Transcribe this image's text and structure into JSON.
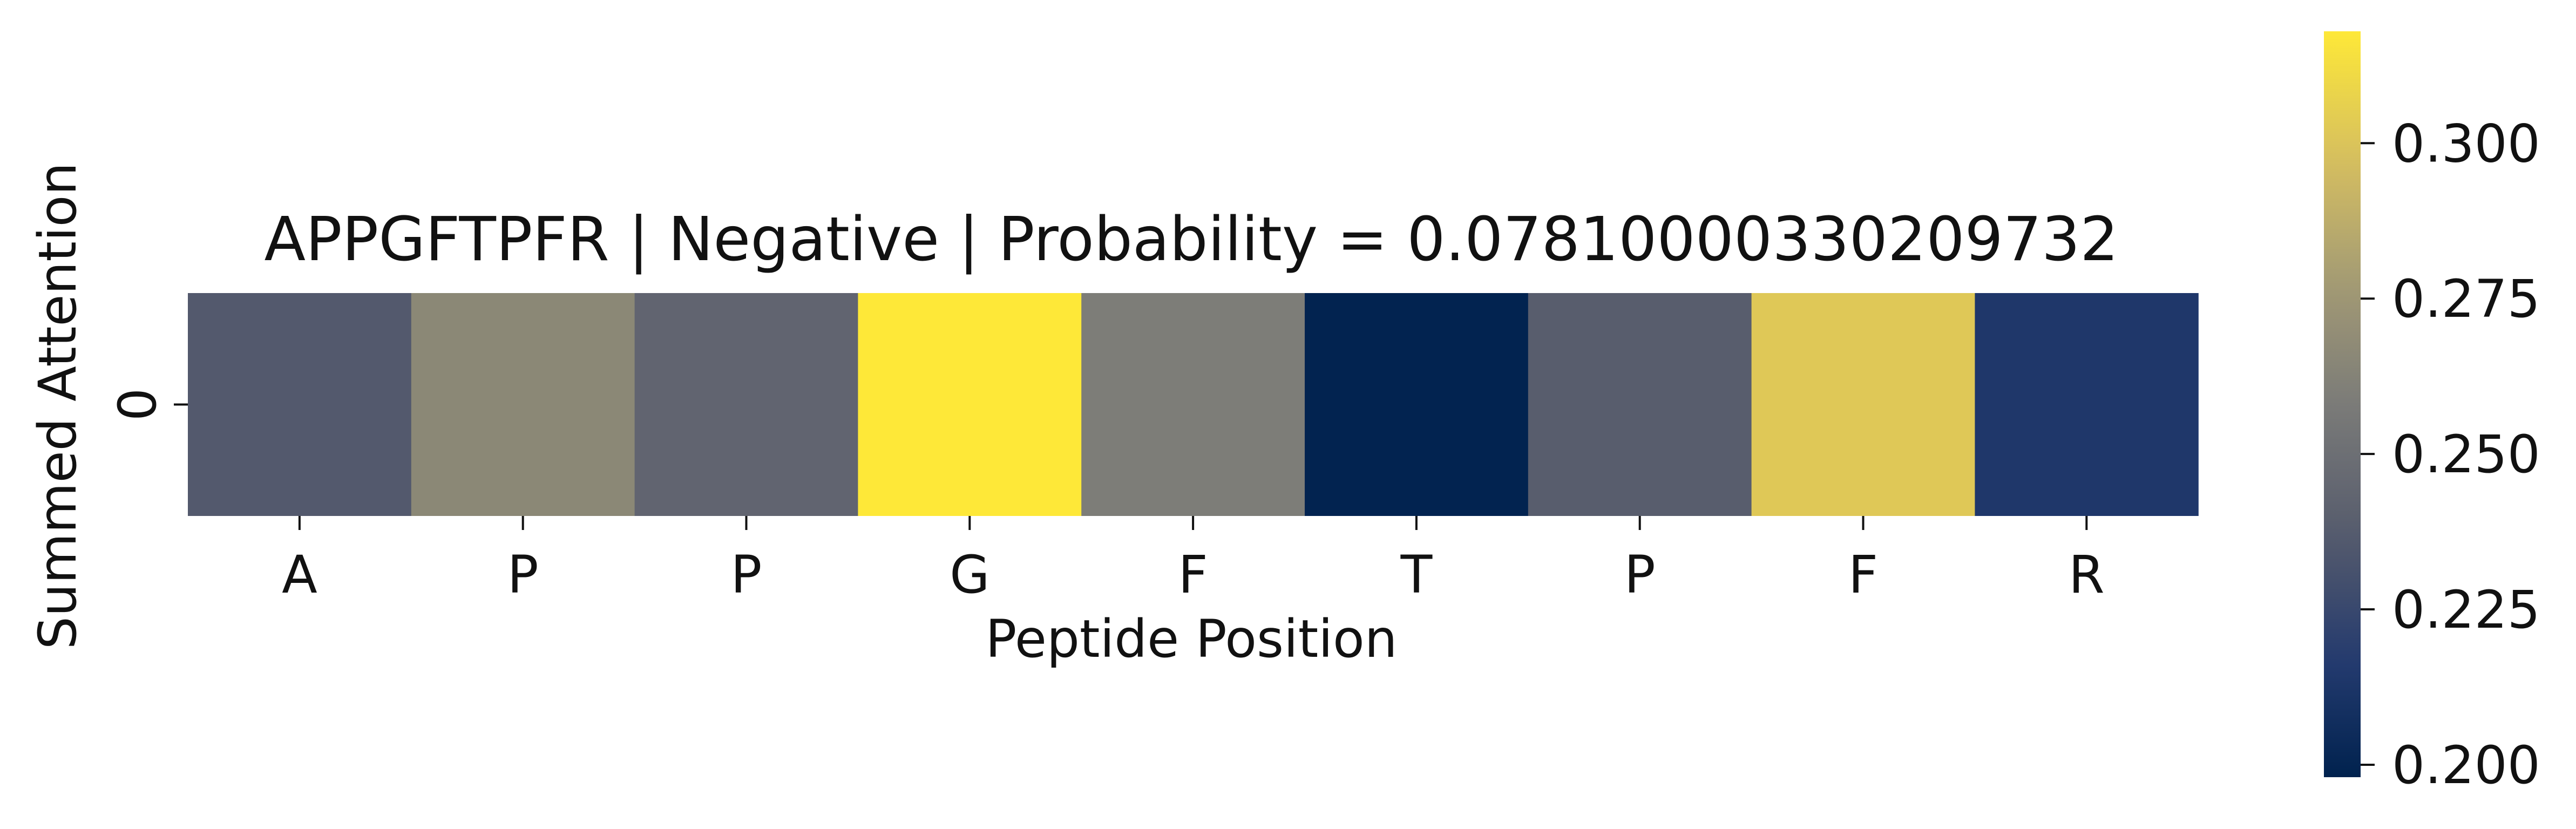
{
  "chart_data": {
    "type": "heatmap",
    "title": "APPGFTPFR | Negative | Probability = 0.07810000330209732",
    "xlabel": "Peptide Position",
    "ylabel": "Summed Attention",
    "x_categories": [
      "A",
      "P",
      "P",
      "G",
      "F",
      "T",
      "P",
      "F",
      "R"
    ],
    "y_categories": [
      "0"
    ],
    "values": [
      [
        0.236,
        0.266,
        0.243,
        0.318,
        0.259,
        0.199,
        0.238,
        0.302,
        0.214
      ]
    ],
    "colormap": "cividis",
    "colorbar": {
      "vmin": 0.198,
      "vmax": 0.318,
      "ticks": [
        0.2,
        0.225,
        0.25,
        0.275,
        0.3
      ],
      "tick_labels": [
        "0.200",
        "0.225",
        "0.250",
        "0.275",
        "0.300"
      ]
    }
  }
}
